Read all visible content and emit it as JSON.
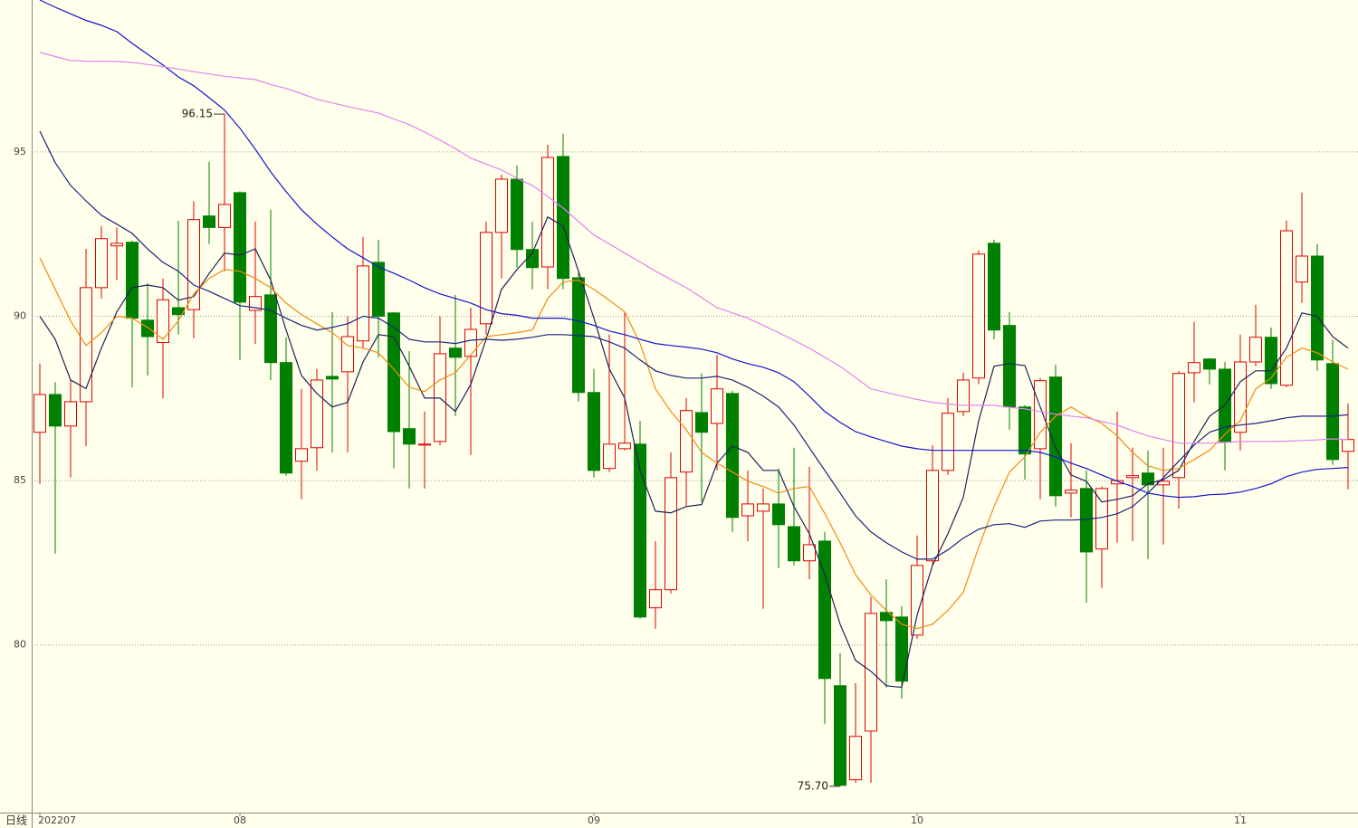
{
  "chart_data": {
    "type": "candlestick",
    "period_label": "日线",
    "categories": [
      "202207",
      null,
      null,
      null,
      null,
      null,
      null,
      null,
      null,
      null,
      null,
      null,
      null,
      "08",
      null,
      null,
      null,
      null,
      null,
      null,
      null,
      null,
      null,
      null,
      null,
      null,
      null,
      null,
      null,
      null,
      null,
      null,
      null,
      null,
      null,
      null,
      "09",
      null,
      null,
      null,
      null,
      null,
      null,
      null,
      null,
      null,
      null,
      null,
      null,
      null,
      null,
      null,
      null,
      null,
      null,
      null,
      null,
      "10",
      null,
      null,
      null,
      null,
      null,
      null,
      null,
      null,
      null,
      null,
      null,
      null,
      null,
      null,
      null,
      null,
      null,
      null,
      null,
      null,
      "11",
      null,
      null,
      null,
      null,
      null,
      null,
      null
    ],
    "open": [
      86.47,
      87.62,
      86.66,
      87.4,
      90.87,
      92.14,
      92.25,
      89.88,
      89.2,
      90.26,
      90.2,
      93.05,
      92.7,
      93.76,
      90.18,
      90.65,
      88.59,
      85.59,
      86.0,
      88.17,
      88.31,
      89.25,
      91.64,
      90.1,
      86.58,
      86.08,
      86.19,
      89.03,
      88.78,
      89.77,
      92.55,
      94.17,
      92.03,
      91.5,
      94.86,
      91.17,
      87.68,
      85.37,
      85.97,
      86.11,
      81.13,
      81.68,
      85.26,
      87.07,
      86.74,
      87.65,
      83.93,
      84.07,
      84.29,
      83.6,
      82.56,
      83.16,
      78.76,
      75.9,
      77.38,
      80.99,
      80.85,
      80.3,
      82.56,
      85.31,
      87.1,
      88.12,
      92.22,
      89.72,
      87.24,
      85.97,
      88.15,
      84.62,
      84.76,
      82.92,
      84.9,
      85.09,
      85.23,
      84.87,
      85.09,
      88.28,
      88.7,
      88.39,
      86.47,
      88.61,
      89.36,
      87.9,
      91.04,
      91.83,
      88.56,
      85.89
    ],
    "high": [
      88.56,
      88.0,
      88.05,
      92.05,
      92.74,
      92.7,
      92.3,
      91.0,
      91.15,
      92.9,
      93.5,
      94.7,
      96.15,
      93.8,
      92.88,
      93.24,
      89.36,
      87.79,
      88.4,
      90.13,
      90.0,
      92.41,
      92.33,
      90.13,
      88.94,
      87.1,
      90.0,
      90.65,
      90.26,
      92.88,
      94.3,
      94.59,
      92.88,
      95.22,
      95.55,
      91.37,
      88.4,
      89.44,
      90.13,
      86.82,
      83.16,
      85.86,
      87.51,
      88.26,
      88.83,
      87.73,
      85.31,
      84.76,
      85.37,
      86.0,
      85.42,
      83.44,
      79.75,
      78.84,
      81.46,
      82.0,
      81.18,
      83.33,
      86.08,
      87.51,
      88.28,
      92.0,
      92.33,
      90.13,
      87.29,
      88.12,
      88.53,
      86.14,
      85.31,
      84.82,
      87.1,
      86.0,
      85.92,
      86.0,
      88.34,
      89.83,
      88.73,
      88.61,
      89.44,
      90.35,
      89.66,
      92.91,
      93.76,
      92.19,
      89.28,
      87.35
    ],
    "low": [
      84.9,
      82.78,
      85.1,
      86.05,
      90.54,
      91.1,
      87.84,
      88.2,
      87.5,
      89.44,
      89.33,
      92.2,
      91.37,
      88.67,
      89.16,
      88.06,
      85.15,
      84.43,
      85.3,
      85.86,
      85.86,
      89.03,
      88.75,
      85.37,
      84.76,
      84.76,
      86.08,
      86.96,
      85.78,
      89.44,
      91.15,
      91.48,
      90.82,
      90.82,
      90.82,
      87.4,
      85.09,
      85.26,
      85.92,
      80.8,
      80.49,
      81.57,
      84.21,
      84.35,
      85.31,
      83.44,
      83.16,
      81.1,
      82.34,
      82.42,
      82.0,
      77.6,
      75.7,
      75.81,
      75.81,
      78.71,
      78.37,
      80.19,
      82.42,
      85.17,
      86.96,
      87.93,
      89.3,
      86.55,
      85.03,
      84.43,
      84.21,
      83.88,
      81.29,
      81.73,
      83.11,
      83.16,
      82.61,
      83.05,
      84.15,
      87.38,
      87.93,
      85.31,
      85.92,
      88.48,
      87.79,
      87.84,
      90.4,
      88.34,
      85.48,
      84.73
    ],
    "close": [
      87.62,
      86.66,
      87.4,
      90.87,
      92.36,
      92.22,
      89.94,
      89.38,
      90.5,
      90.05,
      92.94,
      92.7,
      93.4,
      90.43,
      90.6,
      88.59,
      85.23,
      85.97,
      88.06,
      88.09,
      89.38,
      91.53,
      90.0,
      86.49,
      86.11,
      86.11,
      88.86,
      88.75,
      89.6,
      92.55,
      94.17,
      92.03,
      91.48,
      94.83,
      91.15,
      87.68,
      85.31,
      86.11,
      86.14,
      80.85,
      81.68,
      85.09,
      87.13,
      86.47,
      87.79,
      83.88,
      84.29,
      84.29,
      83.66,
      82.56,
      83.05,
      78.98,
      75.73,
      77.22,
      80.96,
      80.74,
      78.9,
      82.42,
      85.31,
      87.05,
      88.06,
      91.89,
      89.58,
      87.24,
      85.81,
      88.04,
      84.54,
      84.71,
      82.83,
      84.76,
      85.0,
      85.15,
      84.87,
      84.98,
      88.26,
      88.59,
      88.39,
      86.19,
      88.61,
      89.36,
      87.95,
      92.6,
      91.83,
      88.67,
      85.64,
      86.25
    ],
    "up_color": "#e00000",
    "down_color": "#008000",
    "series": [
      {
        "color": "#20205a",
        "values": [
          90.0,
          89.3,
          88.06,
          87.8,
          89.03,
          90.13,
          90.87,
          90.95,
          90.87,
          90.49,
          90.6,
          91.3,
          91.92,
          91.86,
          92.05,
          91.1,
          89.58,
          88.2,
          87.65,
          87.24,
          87.38,
          88.61,
          89.44,
          89.38,
          88.48,
          87.51,
          87.51,
          87.1,
          87.93,
          89.3,
          90.82,
          91.42,
          91.92,
          93.02,
          92.74,
          91.37,
          89.94,
          88.4,
          87.51,
          85.31,
          84.07,
          84.02,
          84.21,
          84.27,
          85.53,
          86.05,
          85.86,
          85.31,
          85.31,
          84.21,
          83.38,
          82.14,
          80.63,
          79.53,
          79.2,
          78.76,
          78.71,
          80.91,
          82.42,
          83.38,
          84.49,
          86.82,
          88.48,
          88.56,
          88.5,
          87.24,
          86.0,
          85.17,
          84.98,
          84.35,
          84.43,
          84.54,
          84.9,
          85.03,
          85.31,
          86.19,
          86.96,
          87.29,
          88.01,
          88.34,
          88.34,
          89.03,
          90.1,
          90.0,
          89.38,
          89.03
        ]
      },
      {
        "color": "#f08c14",
        "values": [
          91.78,
          90.82,
          89.86,
          89.11,
          89.5,
          90.0,
          89.94,
          89.66,
          89.3,
          89.86,
          90.68,
          91.15,
          91.42,
          91.37,
          91.15,
          90.87,
          90.4,
          90.05,
          89.77,
          89.5,
          89.11,
          89.03,
          88.89,
          88.39,
          87.84,
          87.71,
          88.06,
          88.28,
          88.83,
          89.38,
          89.44,
          89.5,
          89.58,
          90.54,
          91.04,
          91.1,
          90.82,
          90.49,
          90.13,
          89.17,
          87.79,
          87.1,
          86.55,
          85.86,
          85.53,
          85.26,
          84.98,
          84.82,
          84.62,
          84.76,
          84.82,
          84.0,
          83.11,
          82.14,
          81.52,
          81.05,
          80.63,
          80.5,
          80.63,
          81.05,
          81.6,
          82.97,
          84.21,
          85.26,
          85.72,
          86.47,
          86.96,
          87.24,
          86.96,
          86.74,
          86.36,
          85.86,
          85.45,
          85.31,
          85.37,
          85.64,
          85.92,
          86.41,
          86.82,
          87.79,
          88.12,
          88.75,
          89.03,
          88.89,
          88.61,
          88.39
        ]
      },
      {
        "color": "#1a237e",
        "values": [
          95.63,
          94.67,
          93.98,
          93.51,
          93.07,
          92.8,
          92.52,
          92.05,
          91.64,
          91.37,
          90.95,
          90.76,
          90.54,
          90.32,
          90.26,
          90.18,
          89.94,
          89.72,
          89.58,
          89.66,
          89.77,
          90.0,
          89.94,
          89.66,
          89.3,
          89.22,
          89.22,
          89.17,
          89.27,
          89.3,
          89.27,
          89.3,
          89.36,
          89.44,
          89.44,
          89.41,
          89.38,
          89.22,
          89.03,
          88.67,
          88.34,
          88.2,
          88.12,
          88.12,
          88.17,
          88.06,
          87.84,
          87.57,
          87.24,
          86.69,
          86.0,
          85.31,
          84.62,
          83.93,
          83.44,
          83.11,
          82.83,
          82.61,
          82.61,
          82.89,
          83.25,
          83.52,
          83.66,
          83.69,
          83.58,
          83.77,
          83.8,
          83.8,
          83.82,
          83.88,
          83.99,
          84.21,
          84.62,
          85.09,
          85.59,
          86.08,
          86.47,
          86.63,
          86.69,
          86.74,
          86.82,
          86.91,
          86.96,
          86.96,
          86.96,
          87.0
        ]
      },
      {
        "color": "#1414d2",
        "values": [
          99.62,
          99.4,
          99.2,
          99.0,
          98.85,
          98.66,
          98.3,
          97.97,
          97.64,
          97.28,
          97.01,
          96.65,
          96.27,
          95.72,
          95.08,
          94.39,
          93.79,
          93.24,
          92.8,
          92.41,
          92.05,
          91.78,
          91.5,
          91.31,
          91.1,
          90.87,
          90.68,
          90.54,
          90.4,
          90.2,
          90.08,
          90.03,
          89.94,
          89.94,
          89.94,
          89.86,
          89.72,
          89.55,
          89.44,
          89.3,
          89.17,
          89.11,
          89.06,
          89.0,
          88.89,
          88.7,
          88.56,
          88.45,
          88.28,
          88.01,
          87.57,
          87.1,
          86.77,
          86.49,
          86.33,
          86.19,
          86.05,
          85.97,
          85.92,
          85.92,
          85.92,
          85.92,
          85.92,
          85.92,
          85.92,
          85.86,
          85.72,
          85.53,
          85.37,
          85.17,
          84.98,
          84.82,
          84.62,
          84.54,
          84.49,
          84.51,
          84.57,
          84.59,
          84.65,
          84.76,
          84.9,
          85.12,
          85.26,
          85.34,
          85.37,
          85.4
        ]
      },
      {
        "color": "#e283f0",
        "values": [
          98.03,
          97.9,
          97.78,
          97.76,
          97.75,
          97.75,
          97.72,
          97.66,
          97.59,
          97.52,
          97.44,
          97.37,
          97.3,
          97.25,
          97.2,
          97.05,
          96.93,
          96.77,
          96.6,
          96.49,
          96.38,
          96.28,
          96.18,
          96.0,
          95.83,
          95.6,
          95.36,
          95.1,
          94.81,
          94.63,
          94.45,
          94.2,
          93.98,
          93.64,
          93.29,
          92.88,
          92.47,
          92.2,
          91.92,
          91.65,
          91.37,
          91.12,
          90.87,
          90.57,
          90.26,
          90.1,
          89.94,
          89.72,
          89.5,
          89.27,
          89.03,
          88.75,
          88.48,
          88.13,
          87.79,
          87.68,
          87.57,
          87.47,
          87.38,
          87.33,
          87.29,
          87.29,
          87.29,
          87.23,
          87.18,
          87.1,
          87.02,
          86.96,
          86.91,
          86.8,
          86.69,
          86.52,
          86.36,
          86.25,
          86.14,
          86.14,
          86.14,
          86.16,
          86.19,
          86.19,
          86.19,
          86.2,
          86.22,
          86.24,
          86.27,
          86.25
        ]
      }
    ],
    "annotations": [
      {
        "text": "96.15",
        "at": "max_high"
      },
      {
        "text": "75.70",
        "at": "min_low"
      }
    ],
    "ylim": [
      74.9,
      99.62
    ],
    "yticks": [
      80,
      85,
      90,
      95
    ],
    "grid": true
  }
}
